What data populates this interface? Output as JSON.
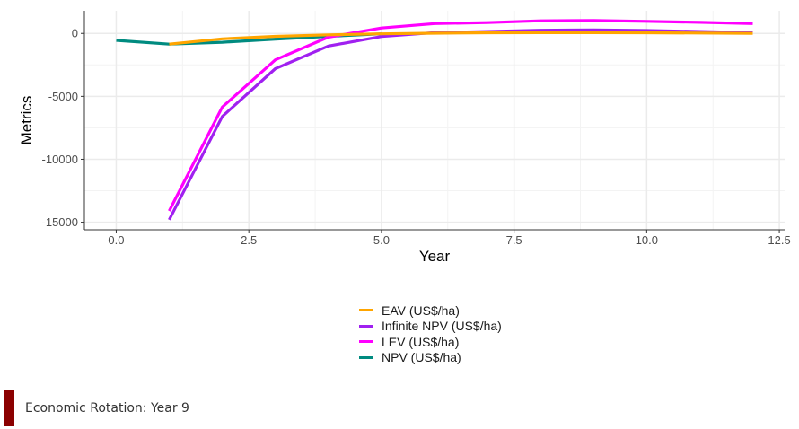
{
  "chart_data": {
    "type": "line",
    "xlabel": "Year",
    "ylabel": "Metrics",
    "xlim": [
      -0.6,
      12.6
    ],
    "ylim": [
      -15600,
      1800
    ],
    "x_ticks": [
      0.0,
      2.5,
      5.0,
      7.5,
      10.0,
      12.5
    ],
    "x_tick_labels": [
      "0.0",
      "2.5",
      "5.0",
      "7.5",
      "10.0",
      "12.5"
    ],
    "y_ticks": [
      0,
      -5000,
      -10000,
      -15000
    ],
    "y_tick_labels": [
      "0",
      "-5000",
      "-10000",
      "-15000"
    ],
    "grid": true,
    "legend_position": "bottom",
    "series": [
      {
        "name": "EAV (US$/ha)",
        "color": "#FFA500",
        "x": [
          1,
          2,
          3,
          4,
          5,
          6,
          7,
          8,
          9,
          10,
          11,
          12
        ],
        "y": [
          -850,
          -430,
          -230,
          -110,
          -30,
          20,
          50,
          60,
          60,
          50,
          30,
          0
        ]
      },
      {
        "name": "Infinite NPV (US$/ha)",
        "color": "#A020F0",
        "x": [
          1,
          2,
          3,
          4,
          5,
          6,
          7,
          8,
          9,
          10,
          11,
          12
        ],
        "y": [
          -14800,
          -6600,
          -2800,
          -1000,
          -250,
          70,
          150,
          250,
          280,
          230,
          150,
          70
        ]
      },
      {
        "name": "LEV (US$/ha)",
        "color": "#FF00FF",
        "x": [
          1,
          2,
          3,
          4,
          5,
          6,
          7,
          8,
          9,
          10,
          11,
          12
        ],
        "y": [
          -14100,
          -5850,
          -2100,
          -300,
          430,
          780,
          860,
          1000,
          1020,
          960,
          880,
          780
        ]
      },
      {
        "name": "NPV (US$/ha)",
        "color": "#008B80",
        "x": [
          0,
          1,
          2,
          3,
          4,
          5
        ],
        "y": [
          -550,
          -850,
          -700,
          -450,
          -230,
          -30
        ]
      }
    ]
  },
  "footer": {
    "text": "Economic Rotation: Year 9",
    "accent_color": "#8B0000"
  }
}
